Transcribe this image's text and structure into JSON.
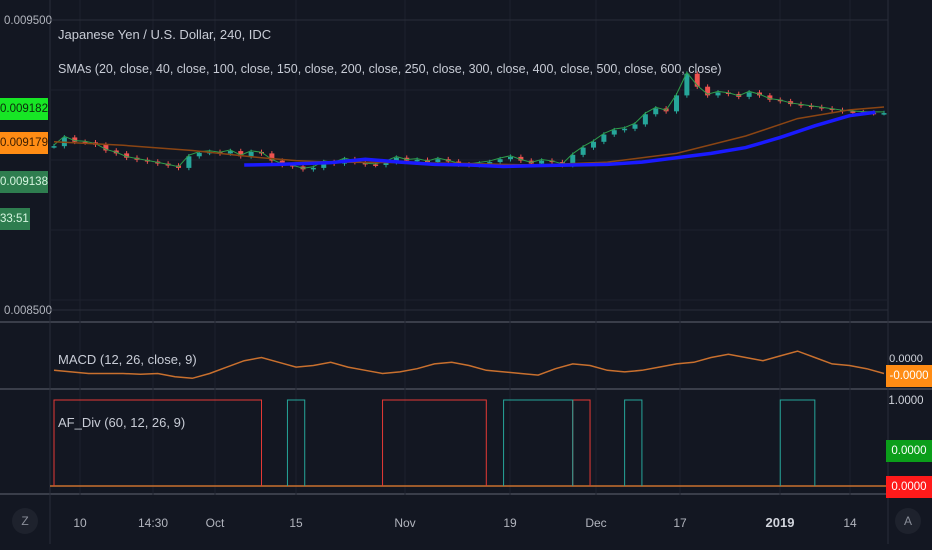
{
  "chart_data": [
    {
      "type": "line",
      "title": "Japanese Yen / U.S. Dollar, 240, IDC",
      "indicator_label": "SMAs (20, close, 40, close, 100, close, 150, close, 200, close, 250, close, 300, close, 400, close, 500, close, 600, close)",
      "ylim": [
        0.0085,
        0.0095
      ],
      "y_ticks": [
        "0.009500",
        "0.008500"
      ],
      "x_ticks": [
        "10",
        "14:30",
        "Oct",
        "15",
        "Nov",
        "19",
        "Dec",
        "17",
        "2019",
        "14"
      ],
      "series": [
        {
          "type": "candlestick-approx",
          "x": [
            0,
            6,
            12,
            18,
            24,
            30,
            36,
            42,
            48,
            54,
            60,
            66,
            72,
            78,
            84,
            90,
            96,
            102,
            108,
            114,
            120,
            126,
            132,
            138,
            144,
            150,
            156,
            162,
            168,
            174,
            180,
            186,
            192,
            198,
            204,
            210,
            216,
            222,
            228,
            234,
            240,
            246,
            252,
            258,
            264,
            270,
            276,
            282,
            288,
            294,
            300,
            306,
            312,
            318,
            324,
            330,
            336,
            342,
            348,
            354,
            360,
            366,
            372,
            378,
            384,
            390,
            396,
            402,
            408,
            414,
            420,
            426,
            432,
            438,
            444,
            450,
            456,
            462,
            468,
            474,
            480
          ],
          "values": [
            0.009065,
            0.009095,
            0.00908,
            0.009078,
            0.00907,
            0.00905,
            0.00904,
            0.009025,
            0.009018,
            0.009012,
            0.009005,
            0.008998,
            0.00899,
            0.00903,
            0.009042,
            0.009045,
            0.00904,
            0.009048,
            0.00903,
            0.009045,
            0.00904,
            0.009015,
            0.009,
            0.008995,
            0.008985,
            0.00899,
            0.00901,
            0.009005,
            0.00902,
            0.00901,
            0.009002,
            0.009,
            0.00901,
            0.009025,
            0.009015,
            0.009018,
            0.00901,
            0.00902,
            0.009012,
            0.009002,
            0.009,
            0.009005,
            0.00901,
            0.00902,
            0.009028,
            0.009015,
            0.009005,
            0.009015,
            0.00901,
            0.009,
            0.009035,
            0.00906,
            0.00908,
            0.009105,
            0.00912,
            0.009125,
            0.00914,
            0.009175,
            0.009195,
            0.009185,
            0.00924,
            0.009315,
            0.00927,
            0.00924,
            0.00925,
            0.009245,
            0.009235,
            0.00925,
            0.00924,
            0.009225,
            0.00922,
            0.00921,
            0.009205,
            0.0092,
            0.009195,
            0.00919,
            0.009185,
            0.009182,
            0.00918,
            0.009179,
            0.009179
          ]
        },
        {
          "name": "",
          "color": "#8B4513",
          "x": [
            0,
            40,
            80,
            120,
            140,
            160,
            200,
            240,
            260,
            280,
            320,
            360,
            400,
            430,
            460,
            480
          ],
          "values": [
            0.00908,
            0.009068,
            0.00905,
            0.009025,
            0.009015,
            0.00901,
            0.009008,
            0.009005,
            0.009002,
            0.009,
            0.00901,
            0.00904,
            0.0091,
            0.00916,
            0.00919,
            0.0092
          ]
        },
        {
          "name": "",
          "color": "#1a1aff",
          "x": [
            110,
            130,
            160,
            180,
            200,
            220,
            240,
            260,
            280,
            300,
            320,
            340,
            360,
            380,
            400,
            420,
            440,
            460,
            475
          ],
          "values": [
            0.009,
            0.009002,
            0.009008,
            0.00902,
            0.00901,
            0.009002,
            0.009,
            0.008995,
            0.008998,
            0.009,
            0.009002,
            0.00901,
            0.009025,
            0.00904,
            0.00906,
            0.009095,
            0.009135,
            0.00917,
            0.009182
          ]
        }
      ],
      "price_tags": [
        {
          "text": "0.009182",
          "bg": "#17e625",
          "fg": "#0b2a0b"
        },
        {
          "text": "0.009179",
          "bg": "#ff8c14",
          "fg": "#3a1c00"
        },
        {
          "text": "0.009138",
          "bg": "#2e7d4f",
          "fg": "#d6f5e0"
        },
        {
          "text": "33:51",
          "bg": "#2e7d4f",
          "fg": "#d6f5e0"
        }
      ]
    },
    {
      "type": "line",
      "title": "MACD (12, 26, close, 9)",
      "series": [
        {
          "name": "",
          "color": "#c9702e",
          "x": [
            0,
            10,
            20,
            30,
            40,
            50,
            60,
            70,
            80,
            90,
            100,
            110,
            120,
            130,
            140,
            150,
            160,
            170,
            180,
            190,
            200,
            210,
            220,
            230,
            240,
            250,
            260,
            270,
            280,
            290,
            300,
            310,
            320,
            330,
            340,
            350,
            360,
            370,
            380,
            390,
            400,
            410,
            420,
            430,
            440,
            450,
            460,
            470,
            480
          ],
          "values": [
            0.2,
            0.1,
            0.0,
            0.0,
            0.0,
            -0.05,
            0.0,
            -0.2,
            -0.3,
            0.0,
            0.4,
            0.8,
            1.0,
            0.7,
            0.4,
            0.5,
            0.7,
            0.4,
            0.2,
            0.0,
            0.1,
            0.3,
            0.6,
            0.7,
            0.5,
            0.2,
            0.1,
            0.0,
            -0.1,
            0.3,
            0.6,
            0.5,
            0.2,
            0.1,
            0.2,
            0.4,
            0.6,
            0.7,
            1.0,
            1.2,
            1.0,
            0.8,
            1.1,
            1.4,
            1.0,
            0.6,
            0.5,
            0.3,
            0.0
          ]
        }
      ],
      "value_tag": "-0.0000",
      "value_tag_bg": "#ff8c14"
    },
    {
      "type": "line",
      "title": "AF_Div (60, 12, 26, 9)",
      "y_ticks": [
        "1.0000"
      ],
      "series": [
        {
          "name": "",
          "color": "#e53935",
          "segments": [
            [
              0,
              120
            ],
            [
              190,
              250
            ],
            [
              300,
              310
            ]
          ],
          "values": [
            1,
            0
          ]
        },
        {
          "name": "",
          "color": "#26a69a",
          "segments": [
            [
              135,
              145
            ],
            [
              260,
              300
            ],
            [
              330,
              340
            ],
            [
              420,
              440
            ]
          ],
          "values": [
            1,
            0
          ]
        }
      ],
      "value_tags": [
        {
          "text": "0.0000",
          "bg": "#0b9e1a",
          "fg": "#ffffff"
        },
        {
          "text": "0.0000",
          "bg": "#ff1a1a",
          "fg": "#ffffff"
        }
      ]
    }
  ],
  "corner_buttons": {
    "left": "Z",
    "right": "A"
  },
  "pane_tags": {
    "macd_partial": "0.0000"
  }
}
